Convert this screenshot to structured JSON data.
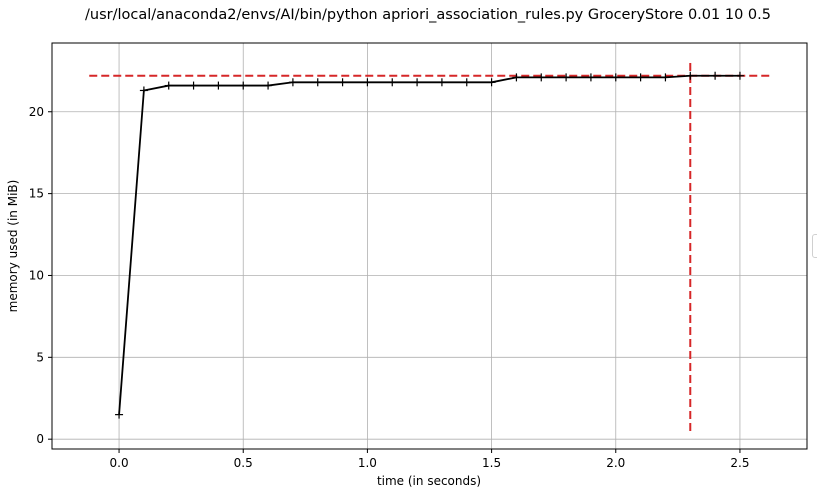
{
  "chart_data": {
    "type": "line",
    "title": "/usr/local/anaconda2/envs/AI/bin/python apriori_association_rules.py GroceryStore 0.01 10 0.5",
    "xlabel": "time (in seconds)",
    "ylabel": "memory used (in MiB)",
    "xlim": [
      -0.27,
      2.77
    ],
    "ylim": [
      -0.6,
      24.2
    ],
    "xticks": [
      0.0,
      0.5,
      1.0,
      1.5,
      2.0,
      2.5
    ],
    "xtick_labels": [
      "0.0",
      "0.5",
      "1.0",
      "1.5",
      "2.0",
      "2.5"
    ],
    "yticks": [
      0,
      5,
      10,
      15,
      20
    ],
    "ytick_labels": [
      "0",
      "5",
      "10",
      "15",
      "20"
    ],
    "grid": true,
    "series": [
      {
        "color": "#000000",
        "marker": "+",
        "x": [
          0.0,
          0.1,
          0.2,
          0.3,
          0.4,
          0.5,
          0.6,
          0.7,
          0.8,
          0.9,
          1.0,
          1.1,
          1.2,
          1.3,
          1.4,
          1.5,
          1.6,
          1.7,
          1.8,
          1.9,
          2.0,
          2.1,
          2.2,
          2.3,
          2.4,
          2.5
        ],
        "y": [
          1.5,
          21.3,
          21.6,
          21.6,
          21.6,
          21.6,
          21.6,
          21.8,
          21.8,
          21.8,
          21.8,
          21.8,
          21.8,
          21.8,
          21.8,
          21.8,
          22.1,
          22.1,
          22.1,
          22.1,
          22.1,
          22.1,
          22.1,
          22.2,
          22.2,
          22.2
        ]
      }
    ],
    "reference_lines": [
      {
        "orientation": "horizontal",
        "y": 22.2,
        "x_range": [
          -0.12,
          2.63
        ],
        "color": "#d62728",
        "style": "dashed"
      },
      {
        "orientation": "vertical",
        "x": 2.3,
        "y_range": [
          0.5,
          23.1
        ],
        "color": "#d62728",
        "style": "dashed"
      }
    ]
  }
}
